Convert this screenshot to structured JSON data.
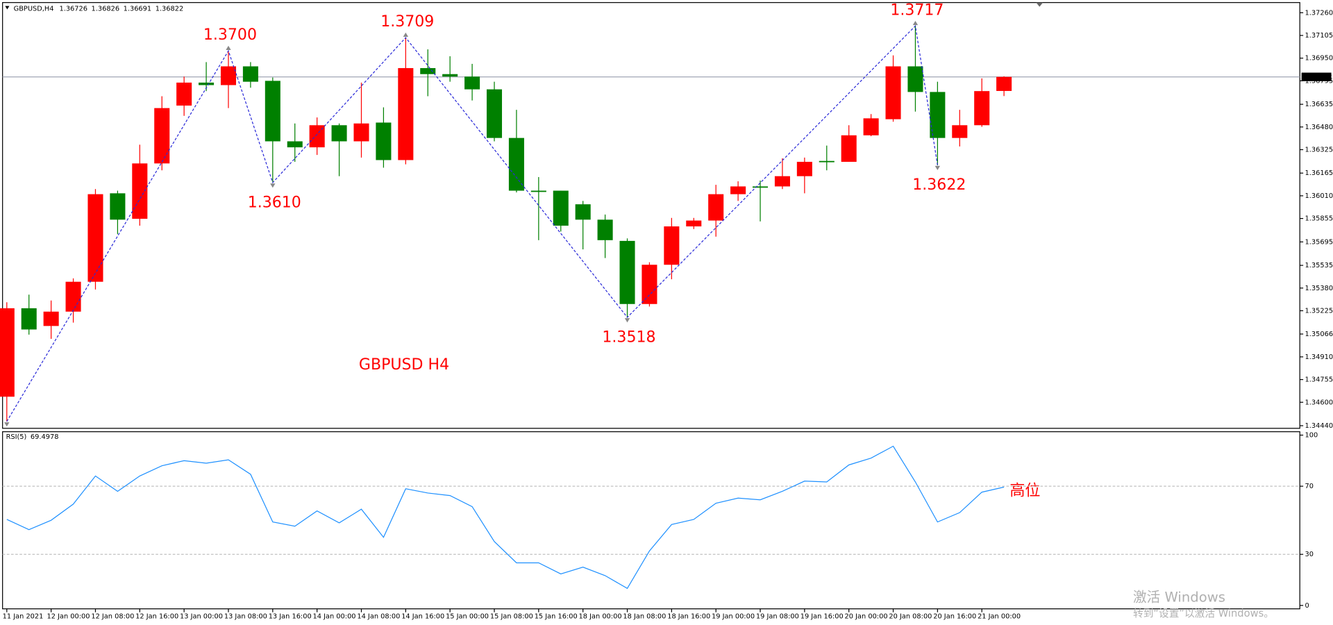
{
  "chart_data": [
    {
      "type": "candlestick",
      "title": "GBPUSD,H4",
      "categories": [
        "11 Jan 2021",
        null,
        "12 Jan 00:00",
        null,
        "12 Jan 08:00",
        null,
        "12 Jan 16:00",
        null,
        "13 Jan 00:00",
        null,
        "13 Jan 08:00",
        null,
        "13 Jan 16:00",
        null,
        "14 Jan 00:00",
        null,
        "14 Jan 08:00",
        null,
        "14 Jan 16:00",
        null,
        "15 Jan 00:00",
        null,
        "15 Jan 08:00",
        null,
        "15 Jan 16:00",
        null,
        "18 Jan 00:00",
        null,
        "18 Jan 08:00",
        null,
        "18 Jan 16:00",
        null,
        "19 Jan 00:00",
        null,
        "19 Jan 08:00",
        null,
        "19 Jan 16:00",
        null,
        "20 Jan 00:00",
        null,
        "20 Jan 08:00",
        null,
        "20 Jan 16:00",
        null,
        "21 Jan 00:00",
        null
      ],
      "open": [
        1.34638,
        1.35242,
        1.35121,
        1.35219,
        1.35423,
        1.36027,
        1.35853,
        1.36231,
        1.36626,
        1.36783,
        1.36766,
        1.36894,
        1.36795,
        1.36382,
        1.36341,
        1.36492,
        1.36382,
        1.3651,
        1.36254,
        1.36882,
        1.36841,
        1.36824,
        1.36737,
        1.36405,
        1.36045,
        1.36045,
        1.35952,
        1.35847,
        1.35702,
        1.35271,
        1.35539,
        1.35801,
        1.35841,
        1.36021,
        1.36074,
        1.36074,
        1.36144,
        1.36248,
        1.36242,
        1.36423,
        1.36533,
        1.36894,
        1.36719,
        1.36405,
        1.36492,
        1.36726
      ],
      "high": [
        1.35283,
        1.35335,
        1.35295,
        1.35446,
        1.36056,
        1.36045,
        1.36359,
        1.3669,
        1.36824,
        1.36923,
        1.36998,
        1.36923,
        1.36818,
        1.36504,
        1.36545,
        1.36504,
        1.36783,
        1.36614,
        1.37091,
        1.3701,
        1.36963,
        1.36911,
        1.36789,
        1.36597,
        1.36138,
        1.36045,
        1.35975,
        1.35882,
        1.35719,
        1.35556,
        1.35859,
        1.35859,
        1.36085,
        1.36109,
        1.36114,
        1.36266,
        1.36271,
        1.36353,
        1.36492,
        1.36568,
        1.36969,
        1.37172,
        1.36789,
        1.36597,
        1.36812,
        1.36826
      ],
      "low": [
        1.34469,
        1.35062,
        1.35033,
        1.35144,
        1.3537,
        1.35748,
        1.35806,
        1.36184,
        1.36556,
        1.36725,
        1.36609,
        1.36748,
        1.36104,
        1.36242,
        1.36289,
        1.36144,
        1.36271,
        1.36202,
        1.36225,
        1.3669,
        1.36789,
        1.36661,
        1.36382,
        1.36033,
        1.35707,
        1.35766,
        1.35644,
        1.35585,
        1.35178,
        1.35254,
        1.3544,
        1.35783,
        1.35731,
        1.35975,
        1.35835,
        1.36056,
        1.36027,
        1.36184,
        1.36242,
        1.36417,
        1.36516,
        1.36585,
        1.36218,
        1.36347,
        1.36481,
        1.36691
      ],
      "close": [
        1.35242,
        1.35097,
        1.35219,
        1.35423,
        1.36021,
        1.35847,
        1.36231,
        1.36609,
        1.36783,
        1.36766,
        1.36894,
        1.36789,
        1.36382,
        1.36341,
        1.36492,
        1.36382,
        1.36504,
        1.36254,
        1.36882,
        1.36841,
        1.36824,
        1.36737,
        1.36405,
        1.36045,
        1.36039,
        1.35806,
        1.35847,
        1.35707,
        1.35271,
        1.35539,
        1.35801,
        1.35841,
        1.36021,
        1.36074,
        1.36068,
        1.36144,
        1.36242,
        1.36242,
        1.36423,
        1.36539,
        1.36894,
        1.36719,
        1.36405,
        1.36492,
        1.36725,
        1.36822
      ],
      "up_color": "#ff0000",
      "down_color": "#008000",
      "ylim": [
        1.34428,
        1.37318
      ],
      "yticks": [
        {
          "value": 1.3726,
          "label": "1.37260"
        },
        {
          "value": 1.37105,
          "label": "1.37105"
        },
        {
          "value": 1.3695,
          "label": "1.36950"
        },
        {
          "value": 1.36795,
          "label": "1.36795"
        },
        {
          "value": 1.36635,
          "label": "1.36635"
        },
        {
          "value": 1.3648,
          "label": "1.36480"
        },
        {
          "value": 1.36325,
          "label": "1.36325"
        },
        {
          "value": 1.36165,
          "label": "1.36165"
        },
        {
          "value": 1.3601,
          "label": "1.36010"
        },
        {
          "value": 1.35855,
          "label": "1.35855"
        },
        {
          "value": 1.35695,
          "label": "1.35695"
        },
        {
          "value": 1.35535,
          "label": "1.35535"
        },
        {
          "value": 1.3538,
          "label": "1.35380"
        },
        {
          "value": 1.35225,
          "label": "1.35225"
        },
        {
          "value": 1.35066,
          "label": "1.35066"
        },
        {
          "value": 1.3491,
          "label": "1.34910"
        },
        {
          "value": 1.34755,
          "label": "1.34755"
        },
        {
          "value": 1.346,
          "label": "1.34600"
        },
        {
          "value": 1.3444,
          "label": "1.34440"
        }
      ],
      "zigzag": {
        "color": "#2a2ad8",
        "x": [
          0,
          10,
          12,
          18,
          28,
          41,
          42
        ],
        "values": [
          1.34469,
          1.37,
          1.361,
          1.3709,
          1.3518,
          1.3717,
          1.3622
        ],
        "value_labels": [
          null,
          "1.3700",
          "1.3610",
          "1.3709",
          "1.3518",
          "1.3717",
          "1.3622"
        ],
        "label_color": "#ff0000"
      },
      "annotation": "GBPUSD  H4"
    },
    {
      "type": "line",
      "title": "RSI(5)",
      "series": [
        {
          "name": "RSI(5)",
          "color": "#1e90ff",
          "values": [
            50.5,
            44.5,
            50,
            59.5,
            76,
            67,
            76,
            82,
            85,
            83.5,
            85.5,
            77,
            49,
            46.5,
            55.5,
            48.5,
            56.5,
            40,
            68.5,
            66,
            64.5,
            58,
            37.5,
            25,
            25,
            18.5,
            22.5,
            17.5,
            10,
            32,
            47.5,
            50.5,
            60,
            63,
            62,
            67,
            73,
            72.5,
            82.5,
            86.5,
            93.5,
            72.5,
            49,
            54.5,
            66.5,
            69.4978
          ]
        }
      ],
      "ylim": [
        -2,
        102
      ],
      "yticks": [
        0,
        30,
        70,
        100
      ],
      "levels": [
        30,
        70
      ],
      "annotation": "高位"
    }
  ],
  "watermark": {
    "title": "激活 Windows",
    "subtitle": "转到“设置”以激活 Windows。"
  }
}
